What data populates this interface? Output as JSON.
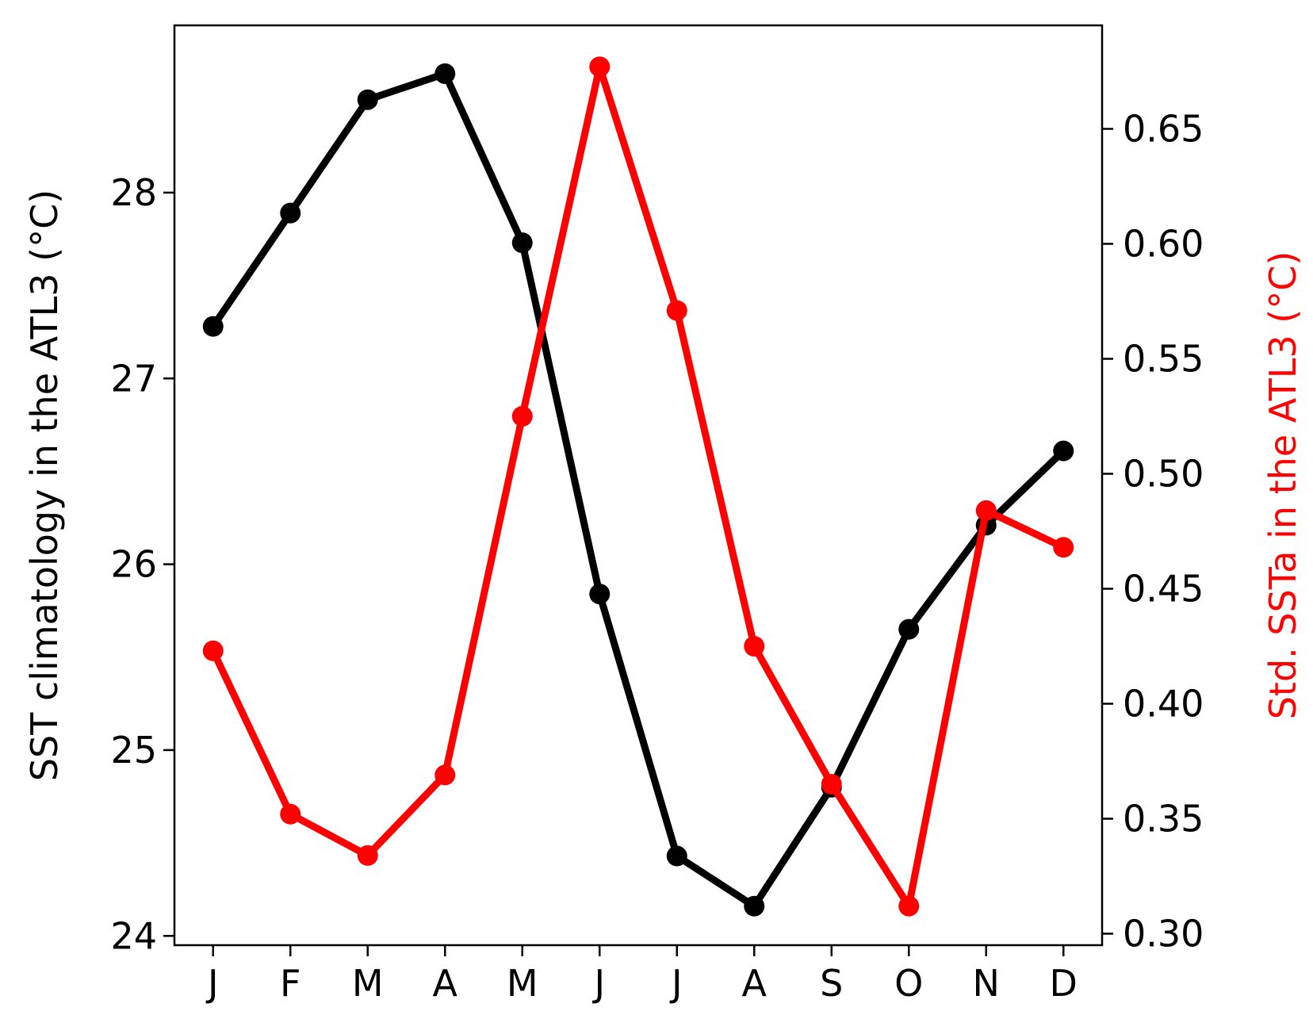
{
  "chart_data": {
    "type": "line",
    "categories": [
      "J",
      "F",
      "M",
      "A",
      "M",
      "J",
      "J",
      "A",
      "S",
      "O",
      "N",
      "D"
    ],
    "series": [
      {
        "axis": "left",
        "color": "#000000",
        "values": [
          27.28,
          27.89,
          28.5,
          28.64,
          27.73,
          25.84,
          24.43,
          24.16,
          24.8,
          25.65,
          26.21,
          26.61
        ]
      },
      {
        "axis": "right",
        "color": "#ff0000",
        "values": [
          0.423,
          0.352,
          0.334,
          0.369,
          0.525,
          0.677,
          0.571,
          0.425,
          0.365,
          0.312,
          0.484,
          0.468
        ]
      }
    ],
    "ylabel_left": "SST climatology in the ATL3 (°C)",
    "ylabel_right": "Std. SSTa in the ATL3 (°C)",
    "ylabel_right_color": "#ff0000",
    "ylim_left": [
      23.95,
      28.9
    ],
    "ylim_right": [
      0.295,
      0.695
    ],
    "yticks_left": [
      "24",
      "25",
      "26",
      "27",
      "28"
    ],
    "yticks_right": [
      "0.30",
      "0.35",
      "0.40",
      "0.45",
      "0.50",
      "0.55",
      "0.60",
      "0.65"
    ],
    "grid": false
  }
}
